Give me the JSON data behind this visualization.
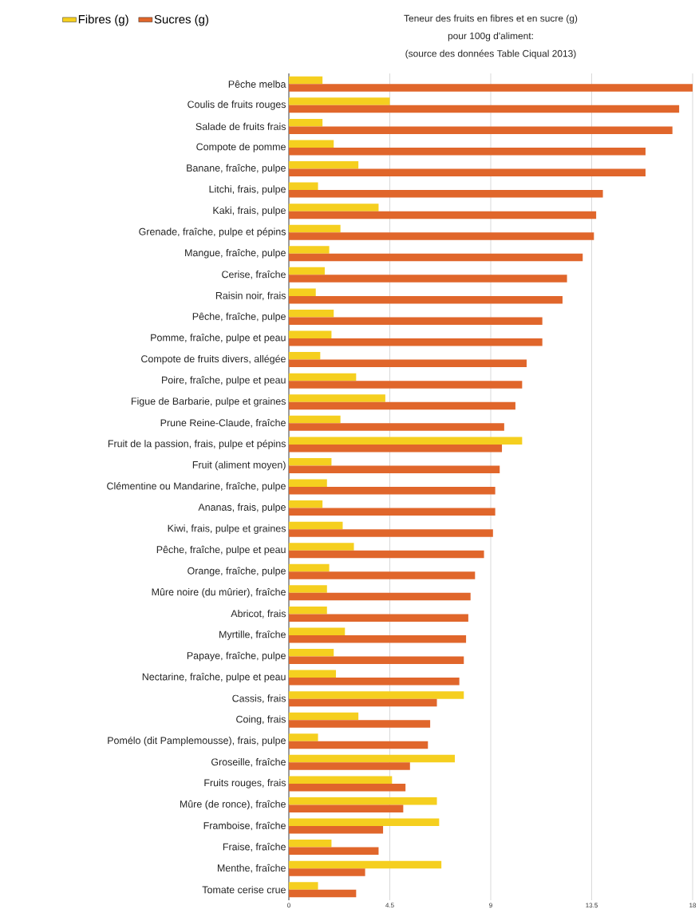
{
  "chart_data": {
    "type": "bar",
    "orientation": "horizontal",
    "title": "Teneur des fruits en fibres et en sucre (g)",
    "subtitle": "pour 100g d'aliment:",
    "annotations": [
      "(source des données Table Ciqual 2013)"
    ],
    "categories": [
      "Pêche melba",
      "Coulis de fruits rouges",
      "Salade de fruits frais",
      "Compote de pomme",
      "Banane, fraîche, pulpe",
      "Litchi, frais, pulpe",
      "Kaki, frais, pulpe",
      "Grenade, fraîche, pulpe et pépins",
      "Mangue, fraîche, pulpe",
      "Cerise, fraîche",
      "Raisin noir, frais",
      "Pêche, fraîche, pulpe",
      "Pomme, fraîche, pulpe et peau",
      "Compote de fruits divers, allégée",
      "Poire, fraîche, pulpe et peau",
      "Figue de Barbarie, pulpe et graines",
      "Prune Reine-Claude, fraîche",
      "Fruit de la passion, frais, pulpe et pépins",
      "Fruit (aliment moyen)",
      "Clémentine ou Mandarine, fraîche, pulpe",
      "Ananas, frais, pulpe",
      "Kiwi, frais, pulpe et graines",
      "Pêche, fraîche, pulpe et peau",
      "Orange, fraîche, pulpe",
      "Mûre noire (du mûrier), fraîche",
      "Abricot, frais",
      "Myrtille, fraîche",
      "Papaye, fraîche, pulpe",
      "Nectarine, fraîche, pulpe et peau",
      "Cassis, frais",
      "Coing, frais",
      "Pomélo (dit Pamplemousse), frais, pulpe",
      "Groseille, fraîche",
      "Fruits rouges, frais",
      "Mûre (de ronce), fraîche",
      "Framboise, fraîche",
      "Fraise, fraîche",
      "Menthe, fraîche",
      "Tomate cerise crue"
    ],
    "series": [
      {
        "name": "Fibres (g)",
        "color": "#f5cf1f",
        "values": [
          1.5,
          4.5,
          1.5,
          2.0,
          3.1,
          1.3,
          4.0,
          2.3,
          1.8,
          1.6,
          1.2,
          2.0,
          1.9,
          1.4,
          3.0,
          4.3,
          2.3,
          10.4,
          1.9,
          1.7,
          1.5,
          2.4,
          2.9,
          1.8,
          1.7,
          1.7,
          2.5,
          2.0,
          2.1,
          7.8,
          3.1,
          1.3,
          7.4,
          4.6,
          6.6,
          6.7,
          1.9,
          6.8,
          1.3
        ]
      },
      {
        "name": "Sucres (g)",
        "color": "#e0662b",
        "values": [
          18.0,
          17.4,
          17.1,
          15.9,
          15.9,
          14.0,
          13.7,
          13.6,
          13.1,
          12.4,
          12.2,
          11.3,
          11.3,
          10.6,
          10.4,
          10.1,
          9.6,
          9.5,
          9.4,
          9.2,
          9.2,
          9.1,
          8.7,
          8.3,
          8.1,
          8.0,
          7.9,
          7.8,
          7.6,
          6.6,
          6.3,
          6.2,
          5.4,
          5.2,
          5.1,
          4.2,
          4.0,
          3.4,
          3.0
        ]
      }
    ],
    "xlim": [
      0,
      18
    ],
    "xticks": [
      0,
      4.5,
      9,
      13.5,
      18
    ],
    "grid": "x",
    "legend": "top left"
  }
}
